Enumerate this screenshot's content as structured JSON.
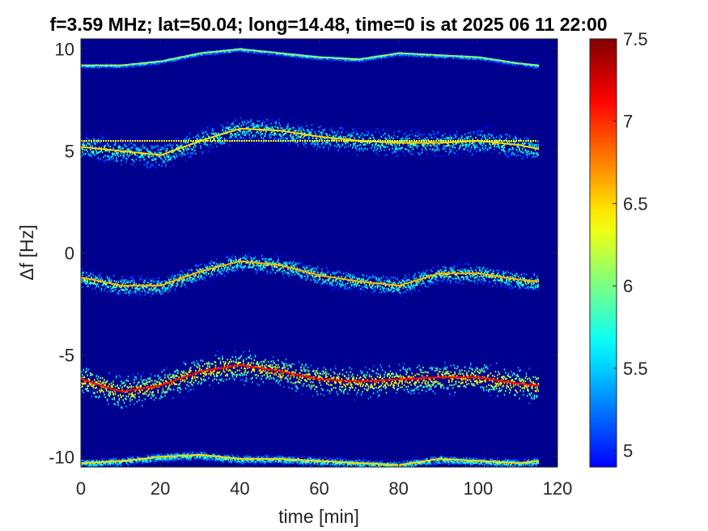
{
  "chart_data": {
    "type": "heatmap",
    "title": "f=3.59 MHz;  lat=50.04; long=14.48, time=0 is at 2025 06 11 22:00",
    "xlabel": "time [min]",
    "ylabel": "Δf [Hz]",
    "xlim": [
      0,
      120
    ],
    "ylim": [
      -10.5,
      10.5
    ],
    "x_ticks": [
      "0",
      "20",
      "40",
      "60",
      "80",
      "100",
      "120"
    ],
    "y_ticks": [
      "10",
      "5",
      "0",
      "-5",
      "-10"
    ],
    "colorbar": {
      "colormap": "jet",
      "range": [
        4.9,
        7.5
      ],
      "ticks": [
        "7.5",
        "7",
        "6.5",
        "6",
        "5.5",
        "5"
      ]
    },
    "background_color": "#00008f",
    "data_end_x": 115,
    "traces": [
      {
        "name": "trace-near-10Hz",
        "x": [
          0,
          10,
          20,
          30,
          40,
          50,
          60,
          70,
          80,
          90,
          100,
          110,
          115
        ],
        "y": [
          9.2,
          9.2,
          9.4,
          9.8,
          10.0,
          9.8,
          9.6,
          9.5,
          9.8,
          9.7,
          9.6,
          9.3,
          9.2
        ],
        "spread": 0.08,
        "intensity": 5.6
      },
      {
        "name": "trace-near-5Hz",
        "x": [
          0,
          10,
          20,
          30,
          40,
          50,
          60,
          70,
          80,
          90,
          100,
          110,
          115
        ],
        "y": [
          5.2,
          5.0,
          4.8,
          5.5,
          6.1,
          6.0,
          5.7,
          5.5,
          5.4,
          5.4,
          5.5,
          5.3,
          5.1
        ],
        "spread": 0.35,
        "intensity": 6.0
      },
      {
        "name": "trace-near-minus1Hz",
        "x": [
          0,
          10,
          20,
          30,
          40,
          50,
          60,
          70,
          80,
          90,
          100,
          110,
          115
        ],
        "y": [
          -1.2,
          -1.6,
          -1.6,
          -0.9,
          -0.4,
          -0.6,
          -1.1,
          -1.4,
          -1.6,
          -1.0,
          -1.0,
          -1.3,
          -1.4
        ],
        "spread": 0.25,
        "intensity": 6.1
      },
      {
        "name": "trace-near-minus6Hz",
        "x": [
          0,
          10,
          20,
          30,
          40,
          50,
          60,
          70,
          80,
          90,
          100,
          110,
          115
        ],
        "y": [
          -6.2,
          -6.8,
          -6.5,
          -5.8,
          -5.5,
          -5.8,
          -6.2,
          -6.3,
          -6.2,
          -6.1,
          -6.1,
          -6.4,
          -6.5
        ],
        "spread": 0.35,
        "intensity": 6.6
      },
      {
        "name": "trace-near-minus10Hz",
        "x": [
          0,
          10,
          20,
          30,
          40,
          50,
          60,
          70,
          80,
          90,
          100,
          110,
          115
        ],
        "y": [
          -10.3,
          -10.2,
          -10.0,
          -9.9,
          -10.1,
          -10.1,
          -10.2,
          -10.3,
          -10.4,
          -10.1,
          -10.2,
          -10.3,
          -10.2
        ],
        "spread": 0.12,
        "intensity": 6.0
      }
    ],
    "constant_lines": [
      {
        "name": "carrier-line",
        "y": 5.5,
        "x_start": 0,
        "x_end": 115,
        "intensity": 6.4
      }
    ]
  }
}
